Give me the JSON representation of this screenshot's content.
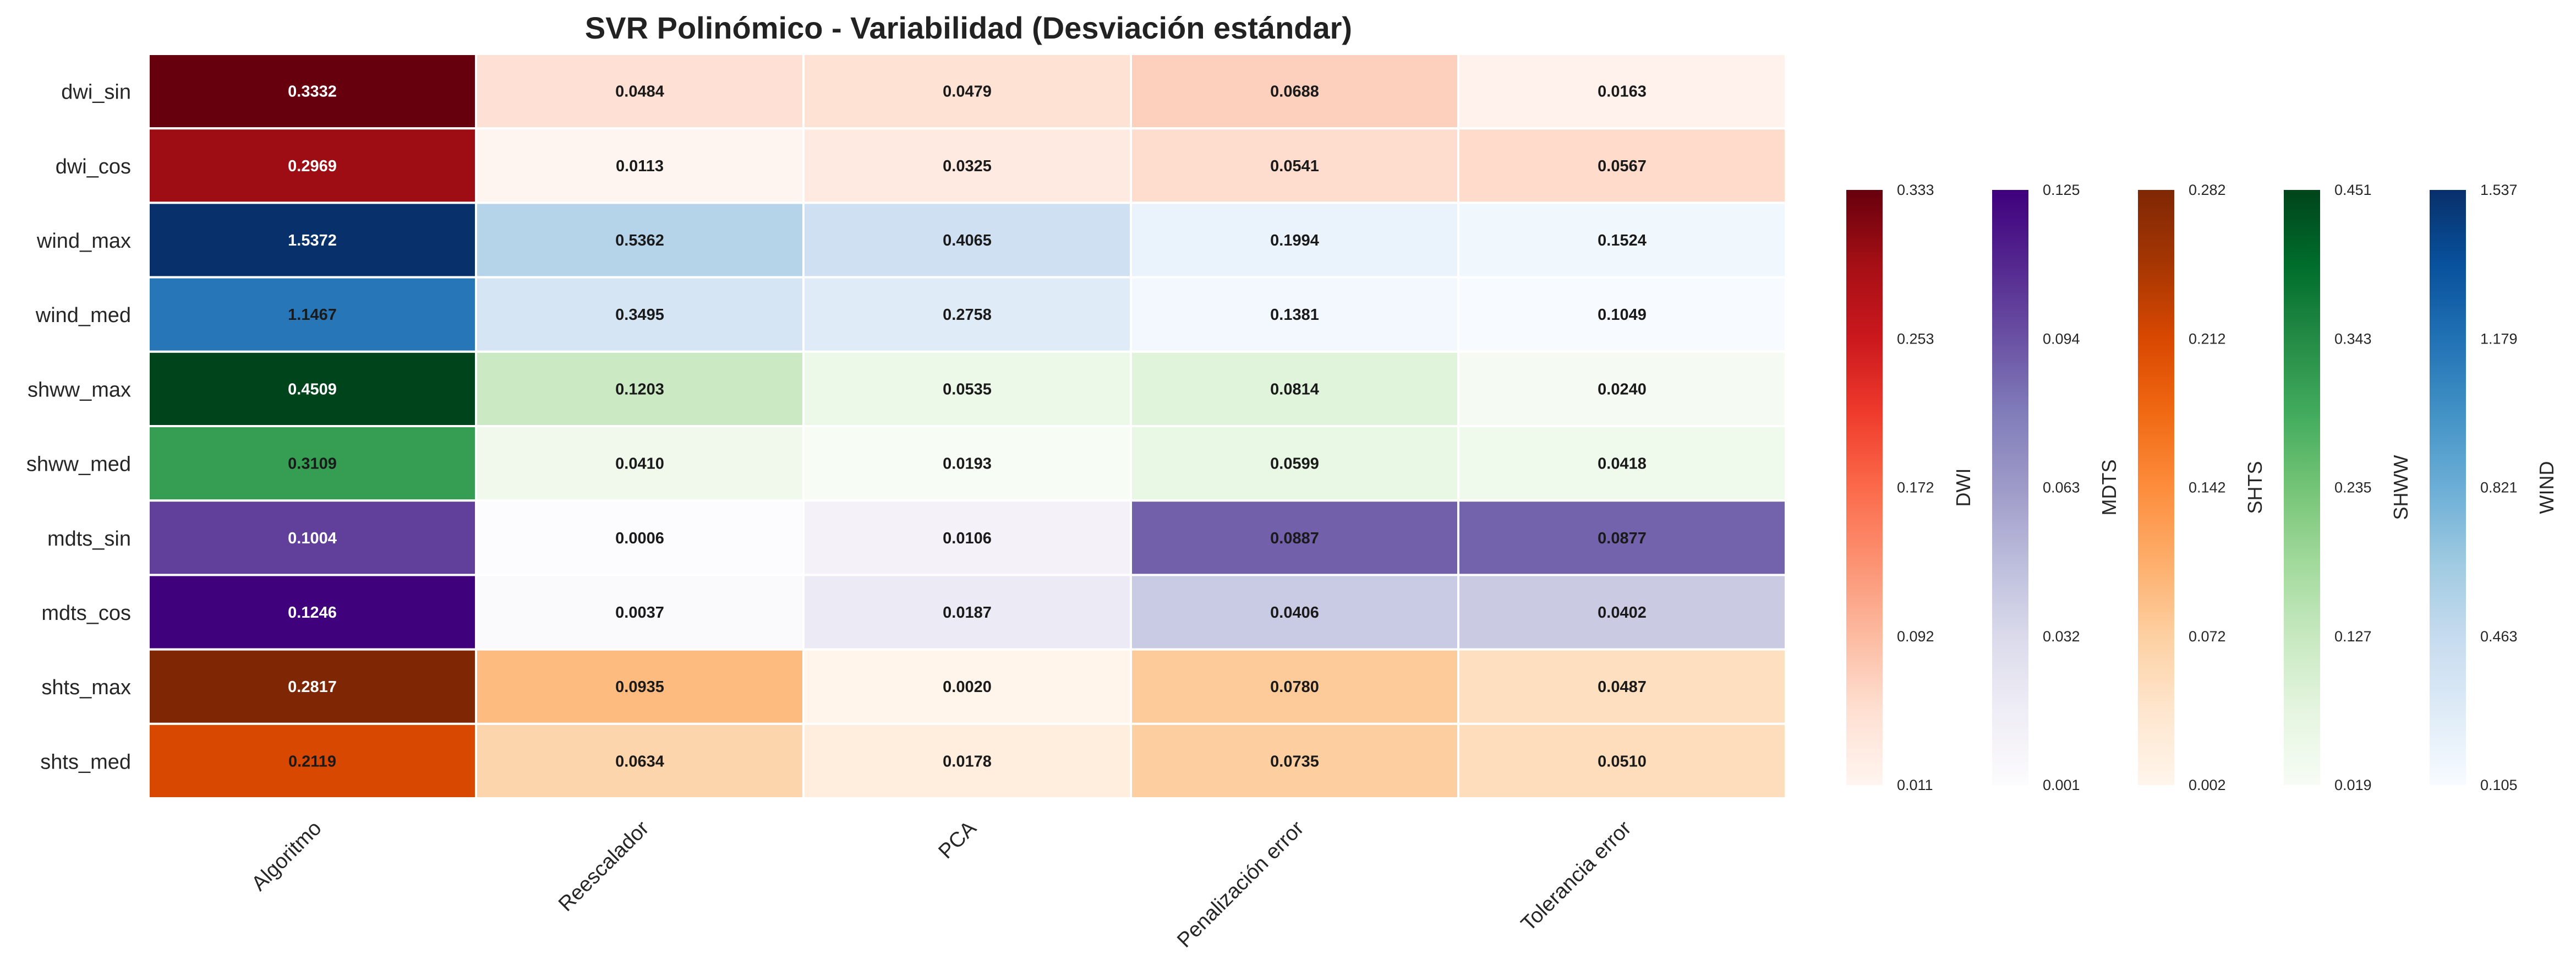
{
  "chart_data": {
    "type": "heatmap",
    "title": "SVR Polinómico - Variabilidad (Desviación estándar)",
    "columns": [
      "Algoritmo",
      "Reescalador",
      "PCA",
      "Penalización error",
      "Tolerancia error"
    ],
    "rows": [
      "dwi_sin",
      "dwi_cos",
      "wind_max",
      "wind_med",
      "shww_max",
      "shww_med",
      "mdts_sin",
      "mdts_cos",
      "shts_max",
      "shts_med"
    ],
    "row_groups": [
      "DWI",
      "DWI",
      "WIND",
      "WIND",
      "SHWW",
      "SHWW",
      "MDTS",
      "MDTS",
      "SHTS",
      "SHTS"
    ],
    "values": [
      [
        0.3332,
        0.0484,
        0.0479,
        0.0688,
        0.0163
      ],
      [
        0.2969,
        0.0113,
        0.0325,
        0.0541,
        0.0567
      ],
      [
        1.5372,
        0.5362,
        0.4065,
        0.1994,
        0.1524
      ],
      [
        1.1467,
        0.3495,
        0.2758,
        0.1381,
        0.1049
      ],
      [
        0.4509,
        0.1203,
        0.0535,
        0.0814,
        0.024
      ],
      [
        0.3109,
        0.041,
        0.0193,
        0.0599,
        0.0418
      ],
      [
        0.1004,
        0.0006,
        0.0106,
        0.0887,
        0.0877
      ],
      [
        0.1246,
        0.0037,
        0.0187,
        0.0406,
        0.0402
      ],
      [
        0.2817,
        0.0935,
        0.002,
        0.078,
        0.0487
      ],
      [
        0.2119,
        0.0634,
        0.0178,
        0.0735,
        0.051
      ]
    ],
    "value_labels": [
      [
        "0.3332",
        "0.0484",
        "0.0479",
        "0.0688",
        "0.0163"
      ],
      [
        "0.2969",
        "0.0113",
        "0.0325",
        "0.0541",
        "0.0567"
      ],
      [
        "1.5372",
        "0.5362",
        "0.4065",
        "0.1994",
        "0.1524"
      ],
      [
        "1.1467",
        "0.3495",
        "0.2758",
        "0.1381",
        "0.1049"
      ],
      [
        "0.4509",
        "0.1203",
        "0.0535",
        "0.0814",
        "0.0240"
      ],
      [
        "0.3109",
        "0.0410",
        "0.0193",
        "0.0599",
        "0.0418"
      ],
      [
        "0.1004",
        "0.0006",
        "0.0106",
        "0.0887",
        "0.0877"
      ],
      [
        "0.1246",
        "0.0037",
        "0.0187",
        "0.0406",
        "0.0402"
      ],
      [
        "0.2817",
        "0.0935",
        "0.0020",
        "0.0780",
        "0.0487"
      ],
      [
        "0.2119",
        "0.0634",
        "0.0178",
        "0.0735",
        "0.0510"
      ]
    ],
    "colorbars": [
      {
        "label": "DWI",
        "colormap": "Reds",
        "vmin": 0.011,
        "vmax": 0.333,
        "ticks": [
          "0.011",
          "0.092",
          "0.172",
          "0.253",
          "0.333"
        ]
      },
      {
        "label": "MDTS",
        "colormap": "Purples",
        "vmin": 0.001,
        "vmax": 0.125,
        "ticks": [
          "0.001",
          "0.032",
          "0.063",
          "0.094",
          "0.125"
        ]
      },
      {
        "label": "SHTS",
        "colormap": "Oranges",
        "vmin": 0.002,
        "vmax": 0.282,
        "ticks": [
          "0.002",
          "0.072",
          "0.142",
          "0.212",
          "0.282"
        ]
      },
      {
        "label": "SHWW",
        "colormap": "Greens",
        "vmin": 0.019,
        "vmax": 0.451,
        "ticks": [
          "0.019",
          "0.127",
          "0.235",
          "0.343",
          "0.451"
        ]
      },
      {
        "label": "WIND",
        "colormap": "Blues",
        "vmin": 0.105,
        "vmax": 1.537,
        "ticks": [
          "0.105",
          "0.463",
          "0.821",
          "1.179",
          "1.537"
        ]
      }
    ],
    "colormaps": {
      "Reds": [
        "#fff5f0",
        "#fee0d2",
        "#fcbba1",
        "#fc9272",
        "#fb6a4a",
        "#ef3b2c",
        "#cb181d",
        "#a50f15",
        "#67000d"
      ],
      "Purples": [
        "#fcfbfd",
        "#efedf5",
        "#dadaeb",
        "#bcbddc",
        "#9e9ac8",
        "#807dba",
        "#6a51a3",
        "#54278f",
        "#3f007d"
      ],
      "Oranges": [
        "#fff5eb",
        "#fee6ce",
        "#fdd0a2",
        "#fdae6b",
        "#fd8d3c",
        "#f16913",
        "#d94801",
        "#a63603",
        "#7f2704"
      ],
      "Greens": [
        "#f7fcf5",
        "#e5f5e0",
        "#c7e9c0",
        "#a1d99b",
        "#74c476",
        "#41ab5d",
        "#238b45",
        "#006d2c",
        "#00441b"
      ],
      "Blues": [
        "#f7fbff",
        "#deebf7",
        "#c6dbef",
        "#9ecae1",
        "#6baed6",
        "#4292c6",
        "#2171b5",
        "#08519c",
        "#08306b"
      ]
    }
  }
}
